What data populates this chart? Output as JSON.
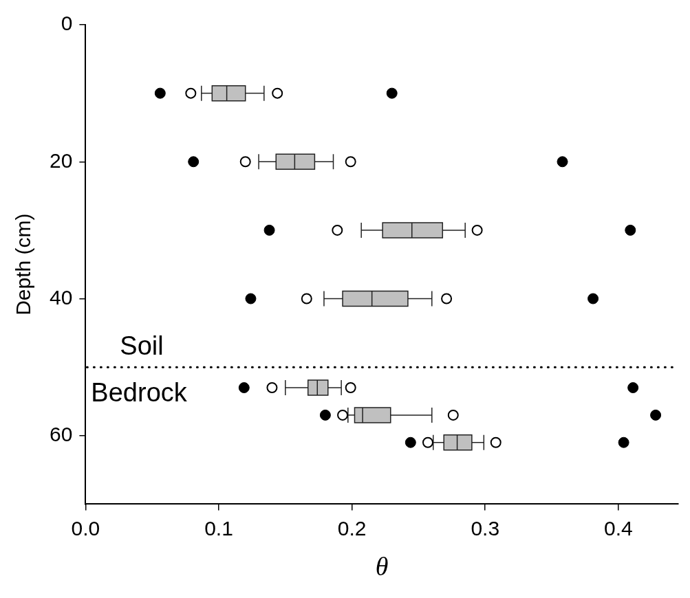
{
  "chart_data": {
    "type": "box",
    "orientation": "horizontal",
    "xlabel": "θ",
    "ylabel": "Depth (cm)",
    "xlim": [
      0,
      0.445
    ],
    "xticks": [
      {
        "value": 0,
        "label": "0.0"
      },
      0.1,
      0.2,
      0.3,
      0.4
    ],
    "ylim": [
      70,
      0
    ],
    "yticks": [
      0,
      20,
      40,
      60
    ],
    "grid": false,
    "series": [
      {
        "type": "box",
        "color": "#c0c0c0",
        "x": [
          10,
          20,
          30,
          40,
          53,
          57,
          61
        ],
        "boxes": [
          {
            "low": 0.087,
            "q1": 0.095,
            "median": 0.106,
            "q3": 0.12,
            "high": 0.134,
            "outliers": [
              0.079,
              0.144
            ]
          },
          {
            "low": 0.13,
            "q1": 0.143,
            "median": 0.157,
            "q3": 0.172,
            "high": 0.186,
            "outliers": [
              0.12,
              0.199
            ]
          },
          {
            "low": 0.207,
            "q1": 0.223,
            "median": 0.245,
            "q3": 0.268,
            "high": 0.285,
            "outliers": [
              0.189,
              0.294
            ]
          },
          {
            "low": 0.179,
            "q1": 0.193,
            "median": 0.215,
            "q3": 0.242,
            "high": 0.26,
            "outliers": [
              0.166,
              0.271
            ]
          },
          {
            "low": 0.15,
            "q1": 0.167,
            "median": 0.174,
            "q3": 0.182,
            "high": 0.192,
            "outliers": [
              0.14,
              0.199
            ]
          },
          {
            "low": 0.197,
            "q1": 0.202,
            "median": 0.208,
            "q3": 0.229,
            "high": 0.26,
            "outliers": [
              0.193,
              0.276
            ]
          },
          {
            "low": 0.261,
            "q1": 0.269,
            "median": 0.279,
            "q3": 0.29,
            "high": 0.299,
            "outliers": [
              0.257,
              0.308
            ]
          }
        ]
      },
      {
        "type": "scatter",
        "color": "#000000",
        "marker": "circle",
        "x": [
          10,
          10,
          20,
          20,
          30,
          30,
          40,
          40,
          53,
          53,
          57,
          57,
          61,
          61
        ],
        "values": [
          0.056,
          0.23,
          0.081,
          0.358,
          0.138,
          0.409,
          0.124,
          0.381,
          0.119,
          0.411,
          0.18,
          0.428,
          0.244,
          0.404
        ]
      }
    ],
    "ref_lines": [
      {
        "axis": "y",
        "value": 50,
        "line_style": "dotted",
        "color": "#000000"
      }
    ],
    "annotations": [
      "Soil",
      "Bedrock"
    ]
  }
}
